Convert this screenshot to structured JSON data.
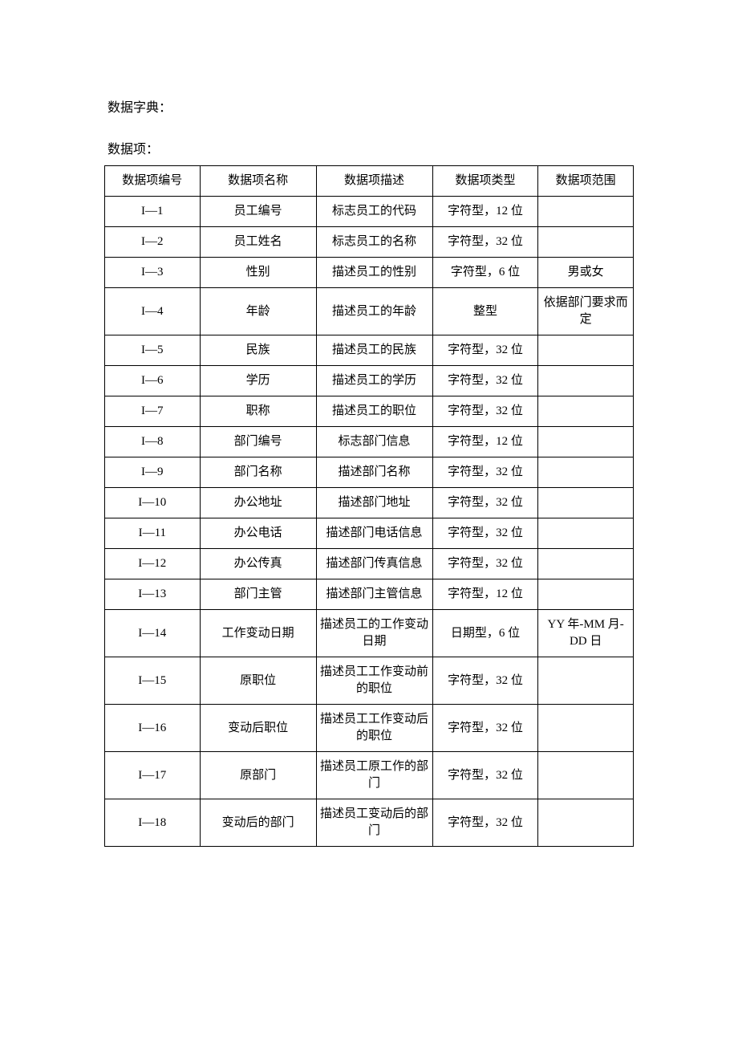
{
  "title": "数据字典：",
  "subtitle": "数据项：",
  "table": {
    "columns": [
      "数据项编号",
      "数据项名称",
      "数据项描述",
      "数据项类型",
      "数据项范围"
    ],
    "rows": [
      [
        "I—1",
        "员工编号",
        "标志员工的代码",
        "字符型，12 位",
        ""
      ],
      [
        "I—2",
        "员工姓名",
        "标志员工的名称",
        "字符型，32 位",
        ""
      ],
      [
        "I—3",
        "性别",
        "描述员工的性别",
        "字符型，6 位",
        "男或女"
      ],
      [
        "I—4",
        "年龄",
        "描述员工的年龄",
        "整型",
        "依据部门要求而定"
      ],
      [
        "I—5",
        "民族",
        "描述员工的民族",
        "字符型，32 位",
        ""
      ],
      [
        "I—6",
        "学历",
        "描述员工的学历",
        "字符型，32 位",
        ""
      ],
      [
        "I—7",
        "职称",
        "描述员工的职位",
        "字符型，32 位",
        ""
      ],
      [
        "I—8",
        "部门编号",
        "标志部门信息",
        "字符型，12 位",
        ""
      ],
      [
        "I—9",
        "部门名称",
        "描述部门名称",
        "字符型，32 位",
        ""
      ],
      [
        "I—10",
        "办公地址",
        "描述部门地址",
        "字符型，32 位",
        ""
      ],
      [
        "I—11",
        "办公电话",
        "描述部门电话信息",
        "字符型，32 位",
        ""
      ],
      [
        "I—12",
        "办公传真",
        "描述部门传真信息",
        "字符型，32 位",
        ""
      ],
      [
        "I—13",
        "部门主管",
        "描述部门主管信息",
        "字符型，12 位",
        ""
      ],
      [
        "I—14",
        "工作变动日期",
        "描述员工的工作变动日期",
        "日期型，6 位",
        "YY 年-MM 月-DD 日"
      ],
      [
        "I—15",
        "原职位",
        "描述员工工作变动前的职位",
        "字符型，32 位",
        ""
      ],
      [
        "I—16",
        "变动后职位",
        "描述员工工作变动后的职位",
        "字符型，32 位",
        ""
      ],
      [
        "I—17",
        "原部门",
        "描述员工原工作的部门",
        "字符型，32 位",
        ""
      ],
      [
        "I—18",
        "变动后的部门",
        "描述员工变动后的部门",
        "字符型，32 位",
        ""
      ]
    ]
  },
  "styling": {
    "background_color": "#ffffff",
    "text_color": "#000000",
    "border_color": "#000000",
    "font_family": "SimSun",
    "heading_fontsize": 16,
    "cell_fontsize": 15
  }
}
